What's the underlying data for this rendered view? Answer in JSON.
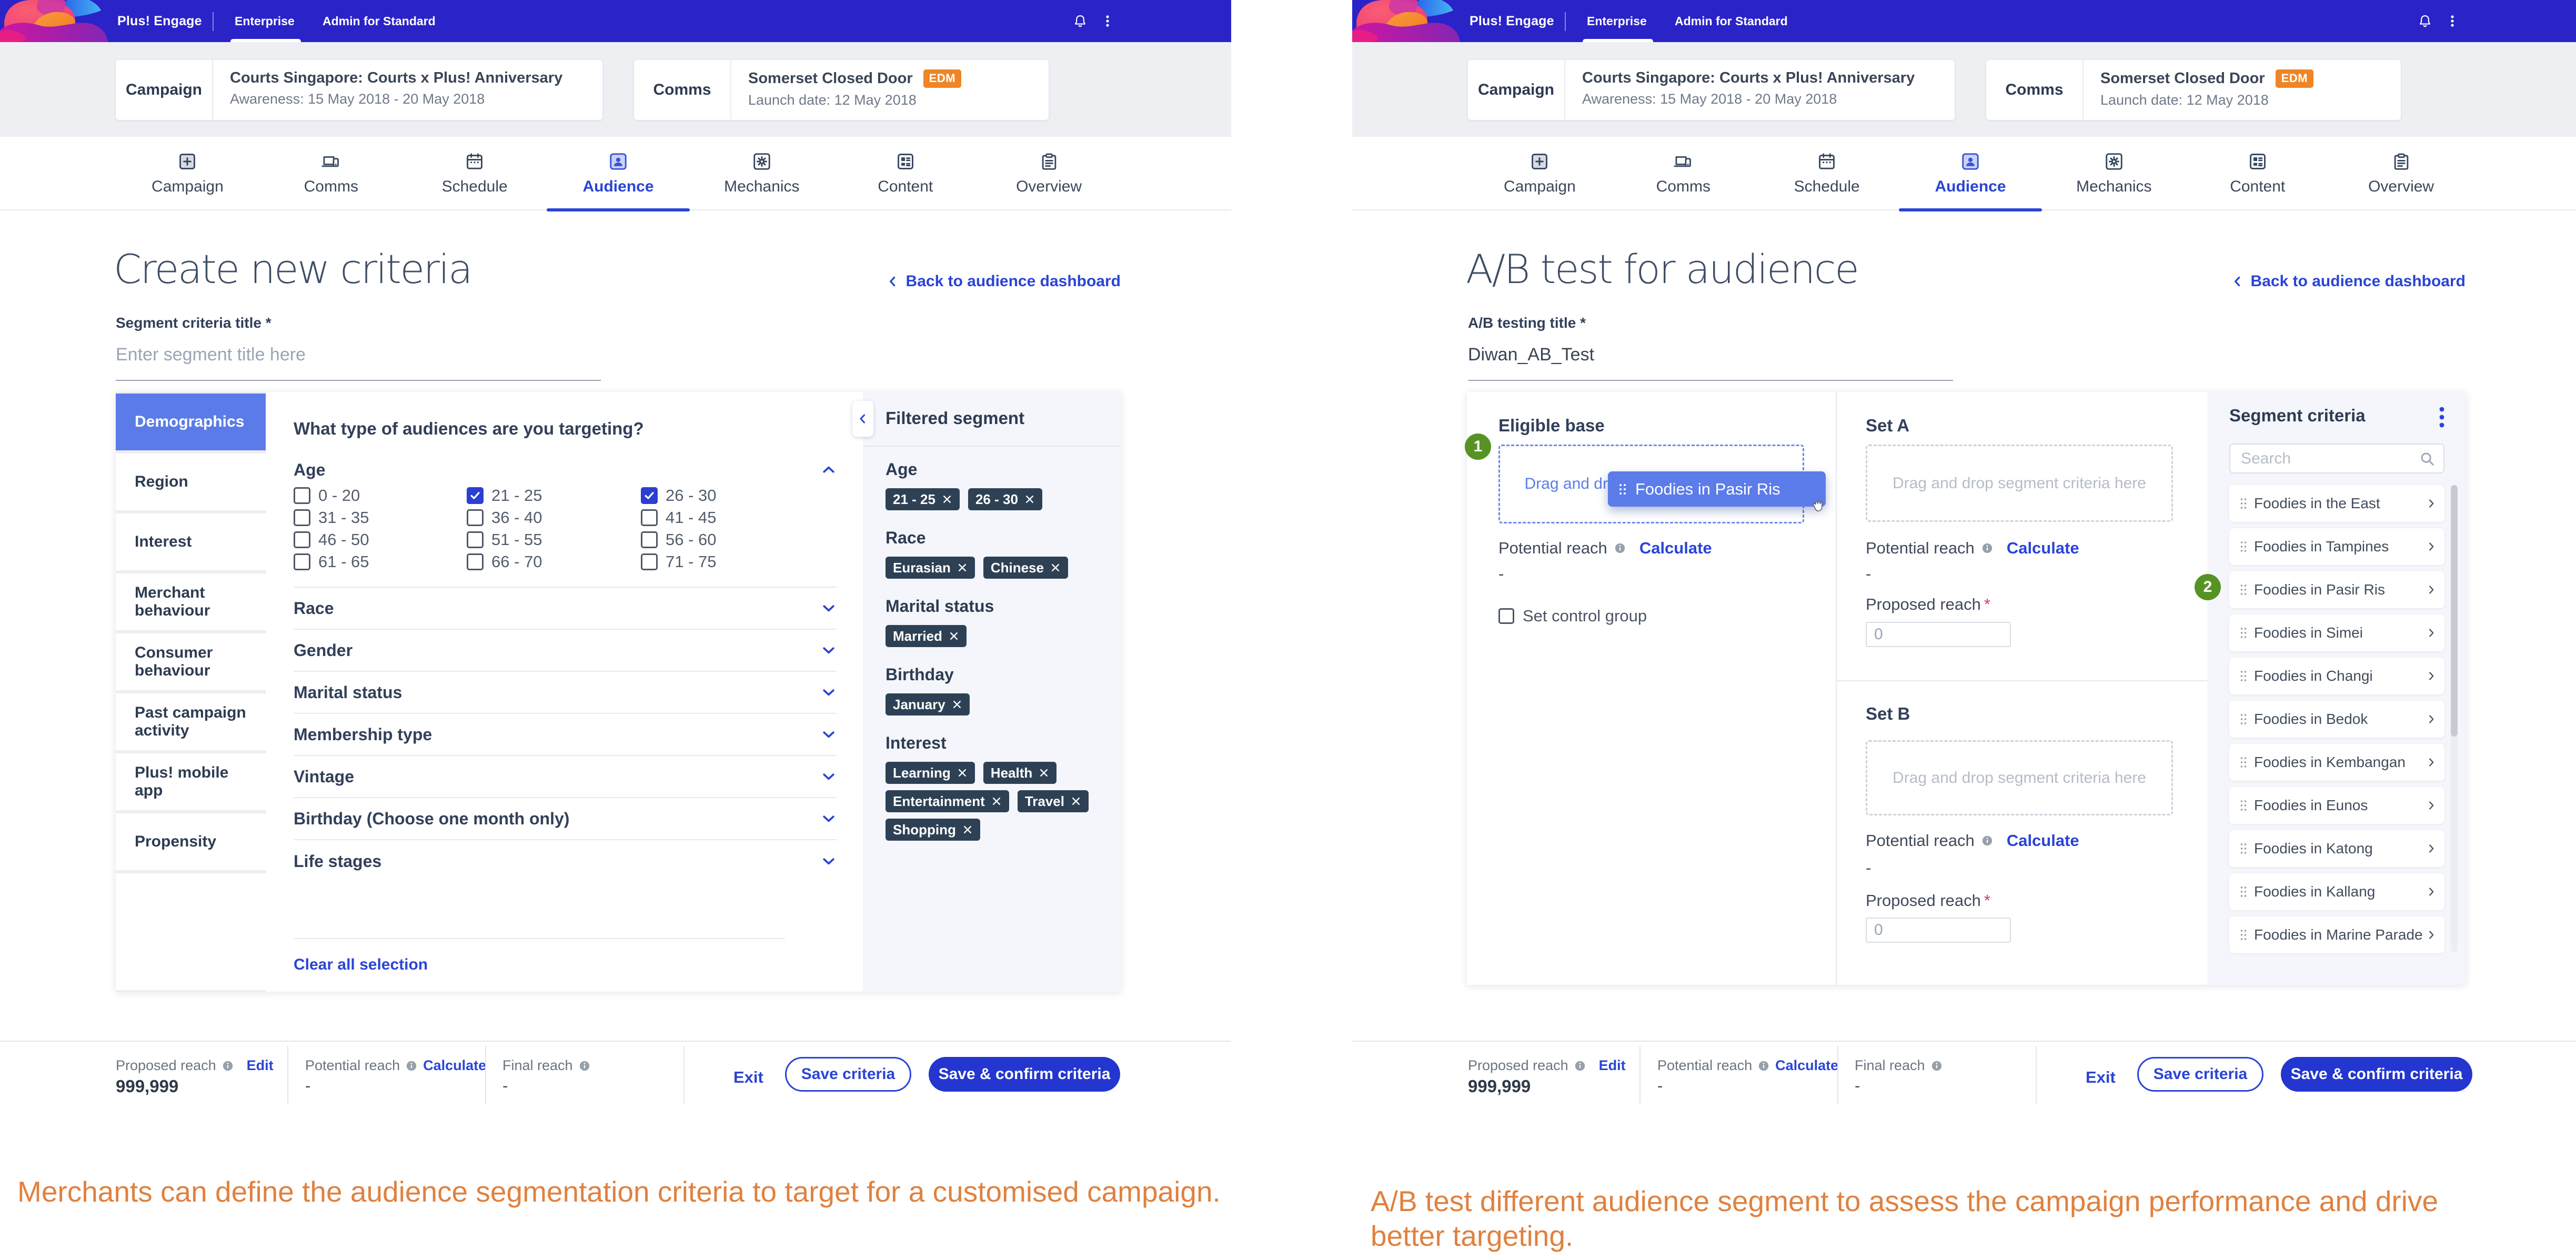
{
  "app": {
    "brand": "Plus! Engage",
    "nav": {
      "enterprise": "Enterprise",
      "admin": "Admin for Standard"
    }
  },
  "context_cards": {
    "campaign": {
      "label": "Campaign",
      "title": "Courts Singapore: Courts x Plus! Anniversary",
      "subtitle": "Awareness: 15 May 2018 - 20 May 2018"
    },
    "comms": {
      "label": "Comms",
      "title": "Somerset Closed Door",
      "badge": "EDM",
      "subtitle": "Launch date: 12 May 2018"
    }
  },
  "tabs": [
    {
      "label": "Campaign",
      "icon": "campaign-icon"
    },
    {
      "label": "Comms",
      "icon": "comms-icon"
    },
    {
      "label": "Schedule",
      "icon": "schedule-icon"
    },
    {
      "label": "Audience",
      "icon": "audience-icon",
      "class": "active"
    },
    {
      "label": "Mechanics",
      "icon": "mechanics-icon"
    },
    {
      "label": "Content",
      "icon": "content-icon"
    },
    {
      "label": "Overview",
      "icon": "overview-icon"
    }
  ],
  "left": {
    "title": "Create new criteria",
    "back_link": "Back to audience dashboard",
    "field_label": "Segment criteria title *",
    "field_placeholder": "Enter segment title here",
    "sidebar": [
      {
        "label": "Demographics",
        "class": "active"
      },
      {
        "label": "Region"
      },
      {
        "label": "Interest"
      },
      {
        "label": "Merchant behaviour"
      },
      {
        "label": "Consumer behaviour"
      },
      {
        "label": "Past campaign activity"
      },
      {
        "label": "Plus! mobile app"
      },
      {
        "label": "Propensity"
      },
      {
        "label": ""
      }
    ],
    "question": "What type of audiences are you targeting?",
    "age_section": "Age",
    "age_options": [
      {
        "label": "0 - 20"
      },
      {
        "label": "21 - 25",
        "class": "checked"
      },
      {
        "label": "26 - 30",
        "class": "checked"
      },
      {
        "label": "31 - 35"
      },
      {
        "label": "36 - 40"
      },
      {
        "label": "41 - 45"
      },
      {
        "label": "46 - 50"
      },
      {
        "label": "51 - 55"
      },
      {
        "label": "56 - 60"
      },
      {
        "label": "61 - 65"
      },
      {
        "label": "66  - 70"
      },
      {
        "label": "71 - 75"
      }
    ],
    "sections": [
      "Race",
      "Gender",
      "Marital status",
      "Membership type",
      "Vintage",
      "Birthday (Choose one month only)",
      "Life stages"
    ],
    "clear_all": "Clear all selection",
    "filtered": {
      "title": "Filtered segment",
      "groups": [
        {
          "label": "Age",
          "chips": [
            "21 - 25",
            "26 - 30"
          ]
        },
        {
          "label": "Race",
          "chips": [
            "Eurasian",
            "Chinese"
          ]
        },
        {
          "label": "Marital status",
          "chips": [
            "Married"
          ]
        },
        {
          "label": "Birthday",
          "chips": [
            "January"
          ]
        },
        {
          "label": "Interest",
          "chips": [
            "Learning",
            "Health",
            "Entertainment",
            "Travel",
            "Shopping"
          ]
        }
      ]
    },
    "caption": "Merchants can define the audience segmentation criteria to target for a customised campaign."
  },
  "right": {
    "title": "A/B test for audience",
    "back_link": "Back to audience dashboard",
    "field_label": "A/B testing title *",
    "field_value": "Diwan_AB_Test",
    "eligible": {
      "title": "Eligible base",
      "badge": "1",
      "drop_hint": "Drag and drop segment criteria here",
      "potential_label": "Potential reach",
      "calculate": "Calculate",
      "value": "-",
      "control_label": "Set control group",
      "drag_chip": "Foodies in Pasir Ris"
    },
    "set_a": {
      "title": "Set A",
      "drop_hint": "Drag and drop segment criteria here",
      "potential_label": "Potential reach",
      "calculate": "Calculate",
      "value": "-",
      "proposed_label": "Proposed reach",
      "required_mark": "*",
      "input_placeholder": "0"
    },
    "set_b": {
      "title": "Set B",
      "drop_hint": "Drag and drop segment criteria here",
      "potential_label": "Potential reach",
      "calculate": "Calculate",
      "value": "-",
      "proposed_label": "Proposed reach",
      "required_mark": "*",
      "input_placeholder": "0"
    },
    "segment_panel": {
      "title": "Segment criteria",
      "search_placeholder": "Search",
      "badge": "2",
      "items": [
        "Foodies in the East",
        "Foodies in Tampines",
        "Foodies in Pasir Ris",
        "Foodies in Simei",
        "Foodies in Changi",
        "Foodies in Bedok",
        "Foodies in Kembangan",
        "Foodies in Eunos",
        "Foodies in Katong",
        "Foodies in Kallang",
        "Foodies in Marine Parade"
      ]
    },
    "caption": "A/B test different audience segment to assess the campaign performance and drive better targeting."
  },
  "footer": {
    "proposed_label": "Proposed reach",
    "edit": "Edit",
    "proposed_value": "999,999",
    "potential_label": "Potential reach",
    "calculate": "Calculate",
    "potential_value": "-",
    "final_label": "Final reach",
    "final_value": "-",
    "exit": "Exit",
    "save": "Save criteria",
    "save_confirm": "Save & confirm criteria"
  },
  "colors": {
    "header": "#2721d3",
    "accent": "#2a44d6",
    "active_item": "#5b7ce8",
    "chip": "#2e4154",
    "orange_badge": "#ef8526",
    "caption_orange": "#e0813f",
    "green_badge": "#579324"
  }
}
